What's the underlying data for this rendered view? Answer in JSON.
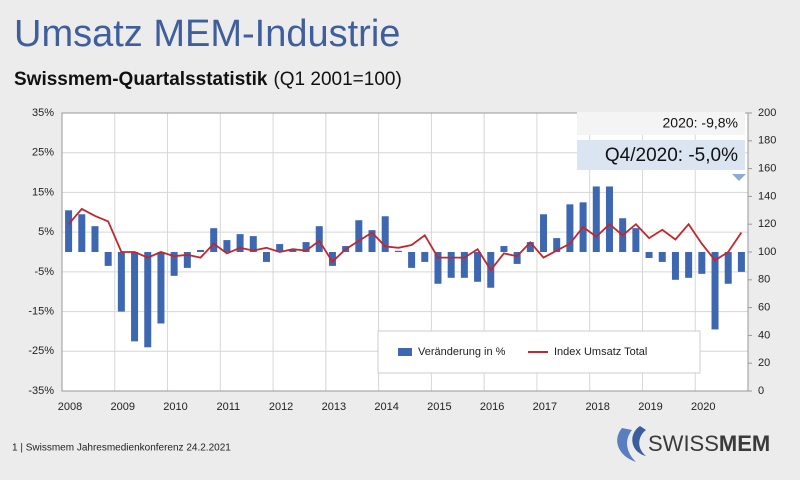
{
  "chart_data": {
    "type": "bar",
    "title": "Umsatz MEM-Industrie",
    "subtitle": "Swissmem-Quartalsstatistik",
    "subtitle_note": "(Q1 2001=100)",
    "categories": [
      "2008",
      null,
      null,
      null,
      "2009",
      null,
      null,
      null,
      "2010",
      null,
      null,
      null,
      "2011",
      null,
      null,
      null,
      "2012",
      null,
      null,
      null,
      "2013",
      null,
      null,
      null,
      "2014",
      null,
      null,
      null,
      "2015",
      null,
      null,
      null,
      "2016",
      null,
      null,
      null,
      "2017",
      null,
      null,
      null,
      "2018",
      null,
      null,
      null,
      "2019",
      null,
      null,
      null,
      "2020",
      null,
      null,
      null
    ],
    "series": [
      {
        "name": "Veränderung in %",
        "type": "bar",
        "color": "#3d67b1",
        "values": [
          10.5,
          9.5,
          6.5,
          -3.5,
          -15,
          -22.5,
          -24,
          -18,
          -6,
          -4,
          0.5,
          6,
          3,
          4.5,
          4,
          -2.5,
          2,
          0.5,
          2.5,
          6.5,
          -3.5,
          1.5,
          8,
          5.5,
          9,
          0.3,
          -4,
          -2.5,
          -8,
          -6.5,
          -6.5,
          -7.5,
          -9,
          1.5,
          -3,
          2.5,
          9.5,
          3.5,
          12,
          12.5,
          16.5,
          16.5,
          8.5,
          6,
          -1.5,
          -2.5,
          -7,
          -6.5,
          -5.5,
          -19.5,
          -8,
          -5
        ]
      },
      {
        "name": "Index Umsatz Total",
        "type": "line",
        "axis": "y2",
        "color": "#c0282d",
        "values": [
          120,
          131,
          126,
          122,
          100,
          100,
          96,
          100,
          97,
          98,
          96,
          106,
          99,
          103,
          101,
          103,
          100,
          102,
          101,
          108,
          93,
          102,
          108,
          114,
          104,
          103,
          105,
          112,
          96,
          96,
          96,
          102,
          87,
          99,
          97,
          107,
          96,
          101,
          106,
          118,
          111,
          120,
          112,
          120,
          110,
          116,
          109,
          120,
          106,
          94,
          100,
          114
        ]
      }
    ],
    "ylim": [
      -35,
      35
    ],
    "yticks": [
      {
        "value": -35,
        "label": "-35%"
      },
      {
        "value": -25,
        "label": "-25%"
      },
      {
        "value": -15,
        "label": "-15%"
      },
      {
        "value": -5,
        "label": "-5%"
      },
      {
        "value": 5,
        "label": "5%"
      },
      {
        "value": 15,
        "label": "15%"
      },
      {
        "value": 25,
        "label": "25%"
      },
      {
        "value": 35,
        "label": "35%"
      }
    ],
    "y2lim": [
      0,
      200
    ],
    "y2ticks": [
      0,
      20,
      40,
      60,
      80,
      100,
      120,
      140,
      160,
      180,
      200
    ],
    "grid": true,
    "legend": "bottom-right",
    "annotations": [
      "2020: -9,8%",
      "Q4/2020: -5,0%"
    ]
  },
  "footer": "1 | Swissmem Jahresmedienkonferenz 24.2.2021",
  "logo": {
    "light": "SWISS",
    "bold": "MEM"
  }
}
